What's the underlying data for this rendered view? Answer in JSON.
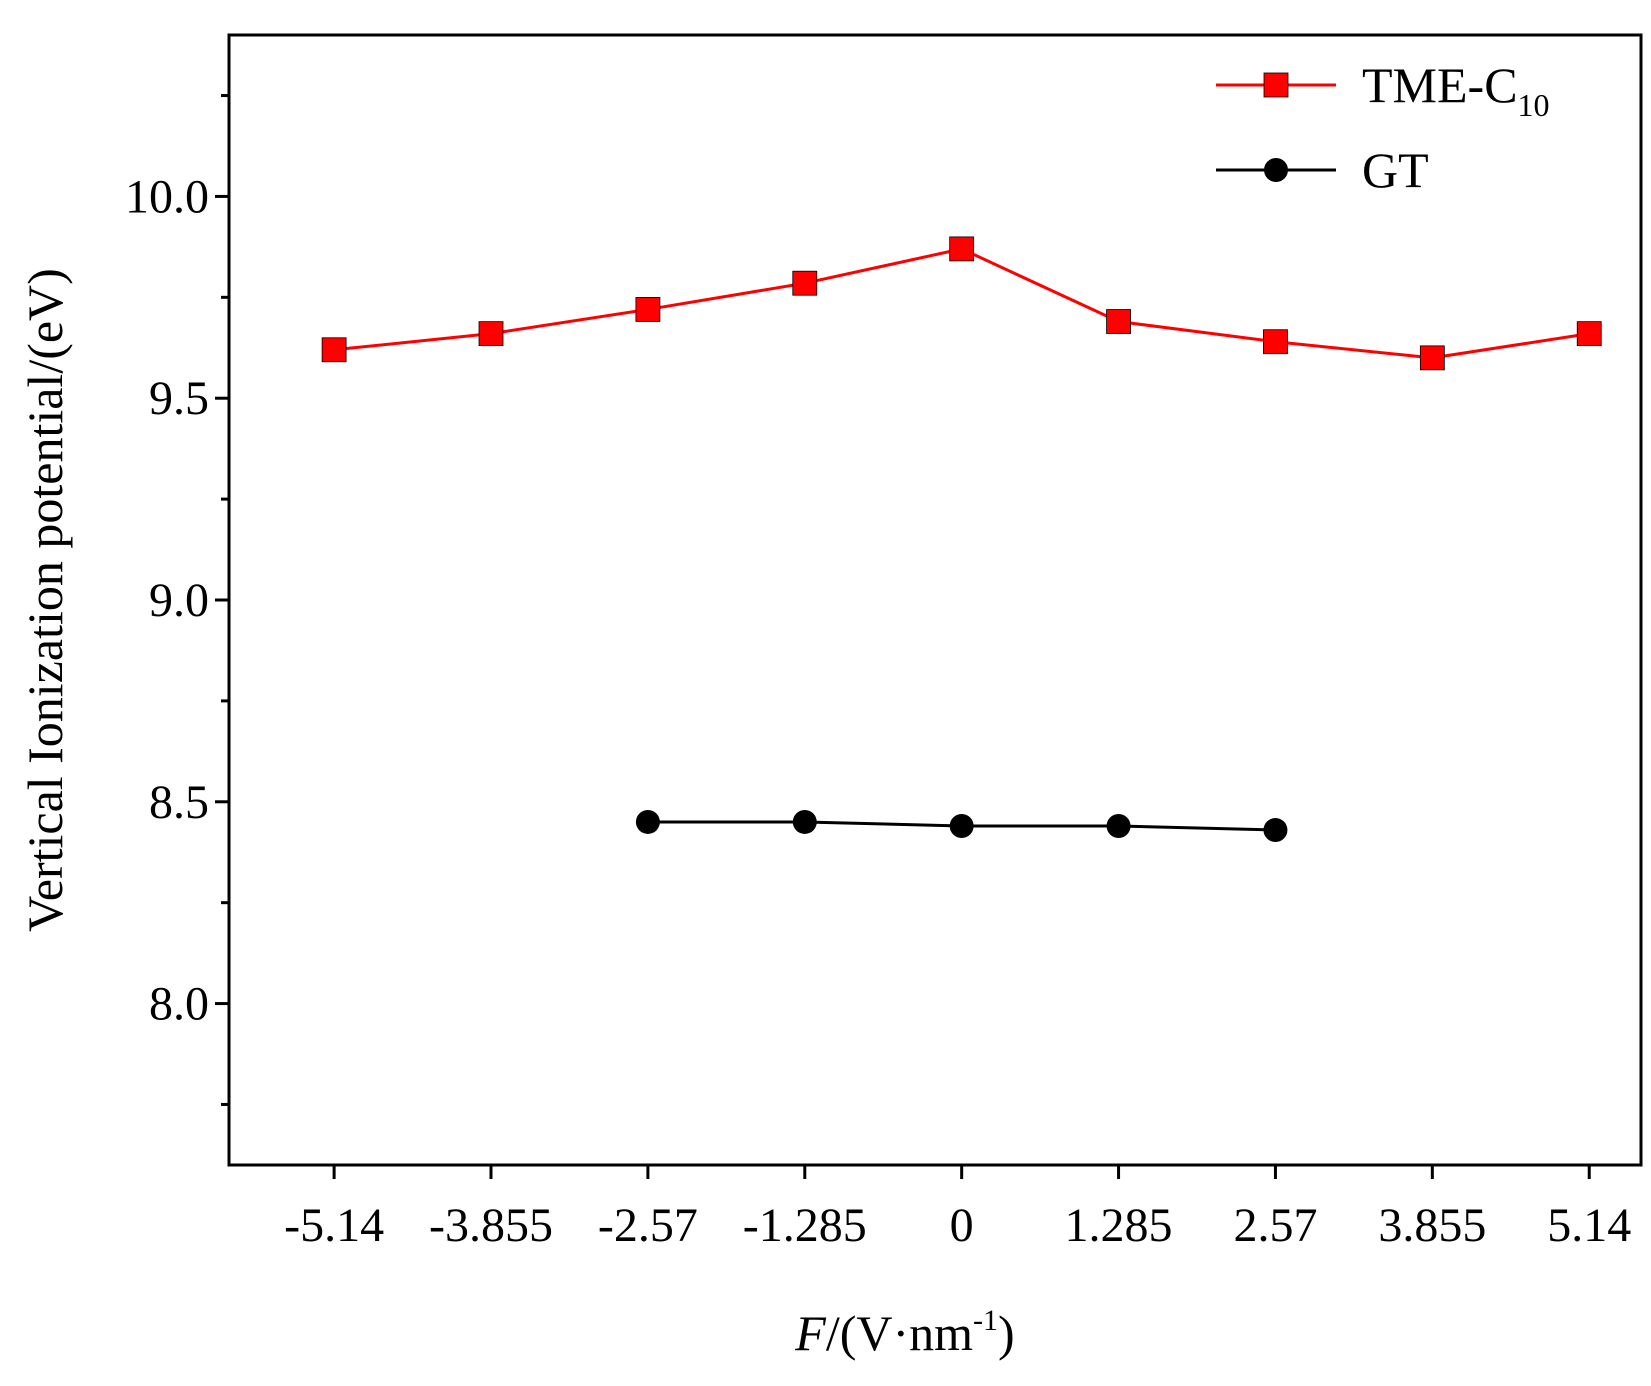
{
  "chart_data": {
    "type": "line",
    "title": "",
    "xlabel": {
      "italic": "F",
      "text": "/(V·nm",
      "sup": "-1",
      "tail": ")"
    },
    "ylabel": "Vertical Ionization potential/(eV)",
    "x_tick_labels": [
      "-5.14",
      "-3.855",
      "-2.57",
      "-1.285",
      "0",
      "1.285",
      "2.57",
      "3.855",
      "5.14"
    ],
    "y_tick_labels": [
      "8.0",
      "8.5",
      "9.0",
      "9.5",
      "10.0"
    ],
    "y_ticks": [
      8.0,
      8.5,
      9.0,
      9.5,
      10.0
    ],
    "y_minor_ticks": [
      7.75,
      8.25,
      8.75,
      9.25,
      9.75,
      10.25
    ],
    "xlim_index": [
      -0.67,
      8.33
    ],
    "ylim": [
      7.6,
      10.4
    ],
    "grid": false,
    "legend_position": "top-right",
    "series": [
      {
        "name": "TME-C",
        "name_sub": "10",
        "color": "#ff0000",
        "marker": "square",
        "x_index": [
          0,
          1,
          2,
          3,
          4,
          5,
          6,
          7,
          8
        ],
        "y": [
          9.62,
          9.66,
          9.72,
          9.785,
          9.87,
          9.69,
          9.64,
          9.6,
          9.66
        ]
      },
      {
        "name": "GT",
        "color": "#000000",
        "marker": "circle",
        "x_index": [
          2,
          3,
          4,
          5,
          6
        ],
        "y": [
          8.45,
          8.45,
          8.44,
          8.44,
          8.43
        ]
      }
    ]
  }
}
